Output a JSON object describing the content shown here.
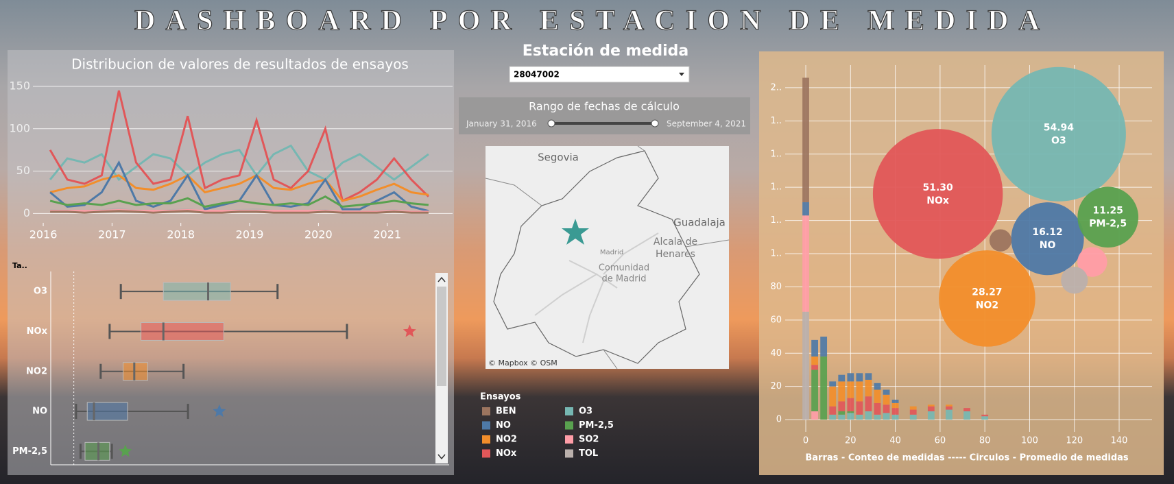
{
  "header": {
    "title": "DASHBOARD POR ESTACION DE MEDIDA"
  },
  "controls": {
    "station_label": "Estación de medida",
    "station_value": "28047002",
    "range_label": "Rango de fechas de cálculo",
    "range_start": "January 31, 2016",
    "range_end": "September 4, 2021"
  },
  "map": {
    "labels": [
      "Segovia",
      "Guadalaja",
      "Alcala de",
      "Henares",
      "Madrid",
      "Comunidad",
      "de Madrid"
    ],
    "attribution": "© Mapbox © OSM"
  },
  "legend": {
    "title": "Ensayos",
    "items": [
      {
        "name": "BEN",
        "color": "#9c755f"
      },
      {
        "name": "NO",
        "color": "#4e79a7"
      },
      {
        "name": "NO2",
        "color": "#f28e2b"
      },
      {
        "name": "NOx",
        "color": "#e15759"
      },
      {
        "name": "O3",
        "color": "#76b7b2"
      },
      {
        "name": "PM-2,5",
        "color": "#59a14f"
      },
      {
        "name": "SO2",
        "color": "#ff9da7"
      },
      {
        "name": "TOL",
        "color": "#bab0ac"
      }
    ]
  },
  "chart_data": [
    {
      "type": "line",
      "title": "Distribucion de valores de resultados de ensayos",
      "x": [
        2016.1,
        2016.35,
        2016.6,
        2016.85,
        2017.1,
        2017.35,
        2017.6,
        2017.85,
        2018.1,
        2018.35,
        2018.6,
        2018.85,
        2019.1,
        2019.35,
        2019.6,
        2019.85,
        2020.1,
        2020.35,
        2020.6,
        2020.85,
        2021.1,
        2021.35,
        2021.6
      ],
      "xlim": [
        2015.85,
        2021.95
      ],
      "xticks": [
        2016,
        2017,
        2018,
        2019,
        2020,
        2021
      ],
      "ylim": [
        -11,
        167
      ],
      "yticks": [
        0,
        50,
        100,
        150
      ],
      "grid": true,
      "series": [
        {
          "name": "O3",
          "color": "#76b7b2",
          "values": [
            40,
            65,
            60,
            70,
            40,
            55,
            70,
            65,
            45,
            60,
            70,
            75,
            45,
            70,
            80,
            50,
            40,
            60,
            70,
            55,
            40,
            55,
            70
          ]
        },
        {
          "name": "NOx",
          "color": "#e15759",
          "values": [
            75,
            40,
            35,
            45,
            145,
            60,
            35,
            40,
            115,
            30,
            40,
            45,
            110,
            40,
            30,
            50,
            100,
            15,
            25,
            40,
            65,
            40,
            20
          ]
        },
        {
          "name": "NO2",
          "color": "#f28e2b",
          "values": [
            25,
            30,
            32,
            40,
            45,
            30,
            28,
            35,
            45,
            25,
            30,
            35,
            45,
            30,
            28,
            35,
            40,
            15,
            20,
            28,
            35,
            25,
            22
          ]
        },
        {
          "name": "NO",
          "color": "#4e79a7",
          "values": [
            25,
            8,
            10,
            25,
            60,
            15,
            8,
            15,
            45,
            5,
            10,
            15,
            45,
            10,
            8,
            12,
            40,
            5,
            5,
            15,
            25,
            8,
            3
          ]
        },
        {
          "name": "PM-2,5",
          "color": "#59a14f",
          "values": [
            15,
            10,
            12,
            10,
            15,
            10,
            12,
            12,
            18,
            8,
            12,
            15,
            12,
            10,
            12,
            10,
            20,
            8,
            10,
            12,
            15,
            12,
            10
          ]
        },
        {
          "name": "TOL",
          "color": "#bab0ac",
          "values": [
            4,
            3,
            3,
            4,
            6,
            3,
            2,
            4,
            5,
            2,
            3,
            4,
            5,
            3,
            2,
            3,
            4,
            1,
            2,
            3,
            4,
            2,
            2
          ]
        },
        {
          "name": "SO2",
          "color": "#ff9da7",
          "values": [
            3,
            3,
            3,
            3,
            4,
            3,
            3,
            3,
            4,
            3,
            3,
            3,
            3,
            3,
            3,
            3,
            3,
            2,
            2,
            2,
            3,
            2,
            2
          ]
        },
        {
          "name": "BEN",
          "color": "#9c755f",
          "values": [
            2,
            2,
            1,
            2,
            3,
            2,
            1,
            2,
            3,
            1,
            1,
            2,
            2,
            1,
            1,
            1,
            2,
            1,
            1,
            1,
            2,
            1,
            1
          ]
        }
      ]
    },
    {
      "type": "box",
      "header": "Ta..",
      "categories": [
        "O3",
        "NOx",
        "NO2",
        "NO",
        "PM-2,5"
      ],
      "xlim": [
        -10,
        160
      ],
      "boxes": [
        {
          "color": "#76b7b2",
          "min": 21,
          "q1": 40,
          "median": 60,
          "q3": 70,
          "max": 91,
          "outliers": []
        },
        {
          "color": "#e15759",
          "min": 16,
          "q1": 30,
          "median": 40,
          "q3": 67,
          "max": 122,
          "outliers": [
            150
          ]
        },
        {
          "color": "#f28e2b",
          "min": 12,
          "q1": 22,
          "median": 27,
          "q3": 33,
          "max": 49,
          "outliers": []
        },
        {
          "color": "#4e79a7",
          "min": 1,
          "q1": 6,
          "median": 9,
          "q3": 24,
          "max": 51,
          "outliers": [
            65
          ]
        },
        {
          "color": "#59a14f",
          "min": 3,
          "q1": 5,
          "median": 11,
          "q3": 16,
          "max": 17,
          "outliers": [
            23
          ]
        }
      ]
    },
    {
      "type": "bubble",
      "x_label": "Barras - Conteo de medidas  -----  Circulos -  Promedio de medidas",
      "xlim": [
        -9.2,
        154.7
      ],
      "xticks": [
        0,
        20,
        40,
        60,
        80,
        100,
        120,
        140
      ],
      "ylim": [
        -7.4,
        213.6
      ],
      "yticks": [
        0,
        20,
        40,
        60,
        80,
        {
          "value": 100,
          "label": "1.."
        },
        {
          "value": 120,
          "label": "1.."
        },
        {
          "value": 140,
          "label": "1.."
        },
        {
          "value": 160,
          "label": "1.."
        },
        {
          "value": 180,
          "label": "1.."
        },
        {
          "value": 200,
          "label": "2.."
        }
      ],
      "grid": true,
      "bubbles": [
        {
          "name": "O3",
          "color": "#76b7b2",
          "x": 113,
          "y": 172,
          "size": 54.94
        },
        {
          "name": "NOx",
          "color": "#e15759",
          "x": 59,
          "y": 136,
          "size": 51.3,
          "size_label": "51.30"
        },
        {
          "name": "NO2",
          "color": "#f28e2b",
          "x": 81,
          "y": 73,
          "size": 28.27
        },
        {
          "name": "NO",
          "color": "#4e79a7",
          "x": 108,
          "y": 109,
          "size": 16.12
        },
        {
          "name": "PM-2,5",
          "color": "#59a14f",
          "x": 135,
          "y": 122,
          "size": 11.25
        },
        {
          "color": "#9c755f",
          "x": 87,
          "y": 108,
          "size": 1.5
        },
        {
          "color": "#ff9da7",
          "x": 128,
          "y": 95,
          "size": 2.7
        },
        {
          "color": "#bab0ac",
          "x": 120,
          "y": 84,
          "size": 2.2
        }
      ],
      "bars": {
        "x": [
          0,
          4,
          8,
          12,
          16,
          20,
          24,
          28,
          32,
          36,
          40,
          48,
          56,
          64,
          72,
          80
        ],
        "series": [
          {
            "name": "TOL",
            "color": "#bab0ac",
            "values": [
              65,
              0,
              0,
              0,
              0,
              0,
              0,
              0,
              0,
              0,
              0,
              0,
              0,
              0,
              0,
              0
            ]
          },
          {
            "name": "SO2",
            "color": "#ff9da7",
            "values": [
              58,
              5,
              0,
              0,
              0,
              0,
              0,
              0,
              0,
              0,
              0,
              0,
              0,
              0,
              0,
              0
            ]
          },
          {
            "name": "O3",
            "color": "#76b7b2",
            "values": [
              0,
              0,
              0,
              3,
              3,
              4,
              3,
              5,
              3,
              4,
              3,
              3,
              5,
              6,
              5,
              2
            ]
          },
          {
            "name": "PM-2,5",
            "color": "#59a14f",
            "values": [
              0,
              25,
              38,
              0,
              2,
              1,
              0,
              0,
              0,
              0,
              0,
              0,
              0,
              0,
              0,
              0
            ]
          },
          {
            "name": "NOx",
            "color": "#e15759",
            "values": [
              0,
              3,
              0,
              5,
              6,
              8,
              8,
              9,
              7,
              5,
              4,
              3,
              3,
              2,
              2,
              1
            ]
          },
          {
            "name": "NO2",
            "color": "#f28e2b",
            "values": [
              0,
              5,
              0,
              12,
              12,
              10,
              12,
              10,
              8,
              6,
              3,
              2,
              1,
              1,
              0,
              0
            ]
          },
          {
            "name": "NO",
            "color": "#4e79a7",
            "values": [
              8,
              10,
              12,
              3,
              4,
              5,
              5,
              4,
              4,
              3,
              2,
              0,
              0,
              0,
              0,
              0
            ]
          },
          {
            "name": "BEN",
            "color": "#9c755f",
            "values": [
              75,
              0,
              0,
              0,
              0,
              0,
              0,
              0,
              0,
              0,
              0,
              0,
              0,
              0,
              0,
              0
            ]
          }
        ]
      }
    }
  ]
}
